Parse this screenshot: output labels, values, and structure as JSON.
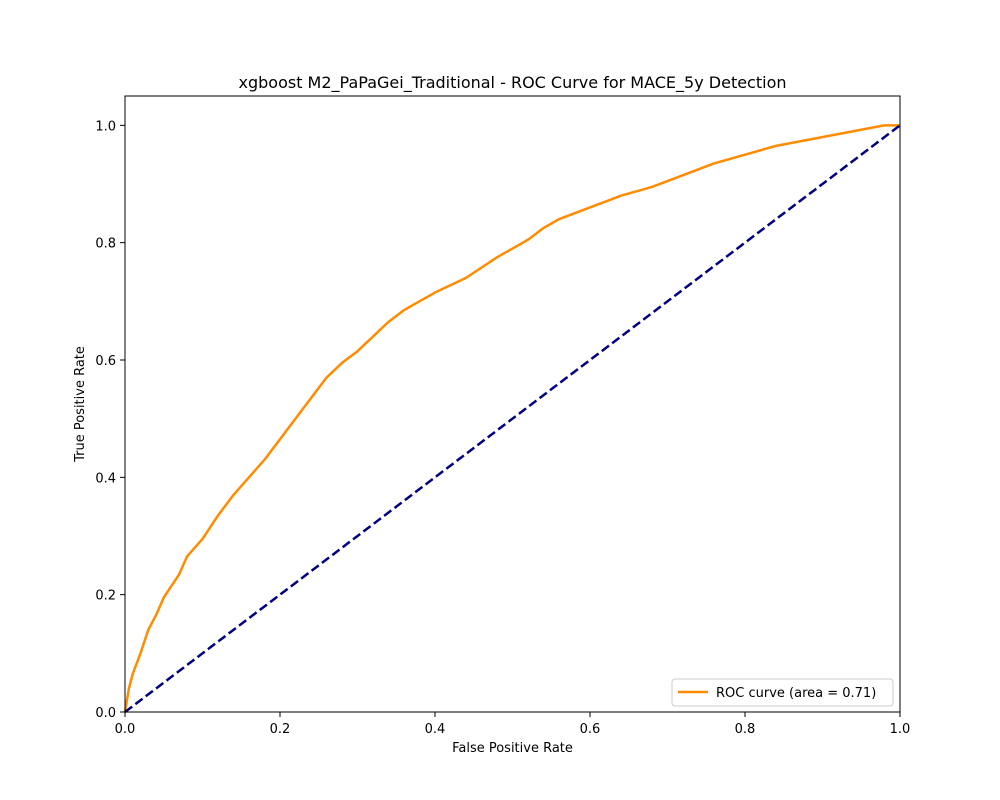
{
  "chart_data": {
    "type": "line",
    "title": "xgboost M2_PaPaGei_Traditional - ROC Curve for MACE_5y Detection",
    "xlabel": "False Positive Rate",
    "ylabel": "True Positive Rate",
    "xlim": [
      0.0,
      1.0
    ],
    "ylim": [
      0.0,
      1.05
    ],
    "xticks": [
      "0.0",
      "0.2",
      "0.4",
      "0.6",
      "0.8",
      "1.0"
    ],
    "yticks": [
      "0.0",
      "0.2",
      "0.4",
      "0.6",
      "0.8",
      "1.0"
    ],
    "grid": false,
    "legend": {
      "position": "lower-right"
    },
    "series": [
      {
        "name": "ROC curve (area = 0.71)",
        "color": "#ff8c00",
        "style": "solid",
        "x": [
          0.0,
          0.005,
          0.01,
          0.02,
          0.03,
          0.04,
          0.05,
          0.06,
          0.07,
          0.08,
          0.09,
          0.1,
          0.12,
          0.14,
          0.16,
          0.18,
          0.2,
          0.22,
          0.24,
          0.26,
          0.28,
          0.3,
          0.32,
          0.34,
          0.36,
          0.38,
          0.4,
          0.44,
          0.48,
          0.5,
          0.52,
          0.54,
          0.56,
          0.6,
          0.64,
          0.68,
          0.72,
          0.76,
          0.8,
          0.84,
          0.88,
          0.92,
          0.96,
          0.98,
          1.0
        ],
        "y": [
          0.0,
          0.04,
          0.065,
          0.1,
          0.14,
          0.165,
          0.195,
          0.215,
          0.235,
          0.265,
          0.28,
          0.295,
          0.335,
          0.37,
          0.4,
          0.43,
          0.465,
          0.5,
          0.535,
          0.57,
          0.595,
          0.615,
          0.64,
          0.665,
          0.685,
          0.7,
          0.715,
          0.74,
          0.775,
          0.79,
          0.805,
          0.825,
          0.84,
          0.86,
          0.88,
          0.895,
          0.915,
          0.935,
          0.95,
          0.965,
          0.975,
          0.985,
          0.995,
          1.0,
          1.0
        ]
      },
      {
        "name": "",
        "color": "#000080",
        "style": "dashed",
        "x": [
          0.0,
          1.0
        ],
        "y": [
          0.0,
          1.0
        ]
      }
    ]
  }
}
